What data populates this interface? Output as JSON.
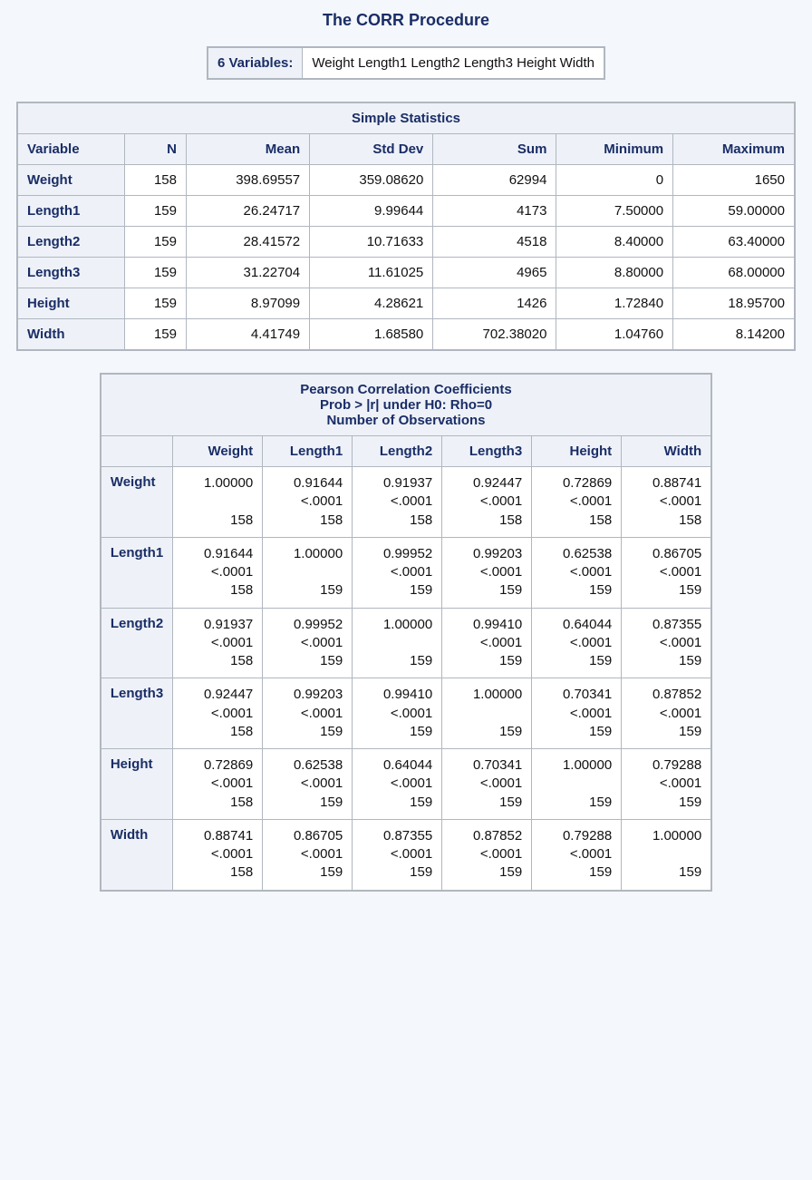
{
  "title": "The CORR Procedure",
  "colors": {
    "page_bg": "#f4f7fb",
    "cell_bg": "#ffffff",
    "header_bg": "#eef2f8",
    "border": "#b0b7bf",
    "title_text": "#1a2d66",
    "body_text": "#111111"
  },
  "fonts": {
    "family": "Arial, Helvetica, sans-serif",
    "title_size_pt": 14,
    "body_size_pt": 11
  },
  "vars_box": {
    "label": "6 Variables:",
    "value": "Weight Length1 Length2 Length3 Height Width"
  },
  "simple_stats": {
    "type": "table",
    "caption": "Simple Statistics",
    "columns": [
      "Variable",
      "N",
      "Mean",
      "Std Dev",
      "Sum",
      "Minimum",
      "Maximum"
    ],
    "rows": [
      [
        "Weight",
        "158",
        "398.69557",
        "359.08620",
        "62994",
        "0",
        "1650"
      ],
      [
        "Length1",
        "159",
        "26.24717",
        "9.99644",
        "4173",
        "7.50000",
        "59.00000"
      ],
      [
        "Length2",
        "159",
        "28.41572",
        "10.71633",
        "4518",
        "8.40000",
        "63.40000"
      ],
      [
        "Length3",
        "159",
        "31.22704",
        "11.61025",
        "4965",
        "8.80000",
        "68.00000"
      ],
      [
        "Height",
        "159",
        "8.97099",
        "4.28621",
        "1426",
        "1.72840",
        "18.95700"
      ],
      [
        "Width",
        "159",
        "4.41749",
        "1.68580",
        "702.38020",
        "1.04760",
        "8.14200"
      ]
    ]
  },
  "corr_matrix": {
    "type": "table",
    "caption_lines": [
      "Pearson Correlation Coefficients",
      "Prob > |r| under H0: Rho=0",
      "Number of Observations"
    ],
    "vars": [
      "Weight",
      "Length1",
      "Length2",
      "Length3",
      "Height",
      "Width"
    ],
    "cells": [
      [
        {
          "r": "1.00000",
          "p": "",
          "n": "158"
        },
        {
          "r": "0.91644",
          "p": "<.0001",
          "n": "158"
        },
        {
          "r": "0.91937",
          "p": "<.0001",
          "n": "158"
        },
        {
          "r": "0.92447",
          "p": "<.0001",
          "n": "158"
        },
        {
          "r": "0.72869",
          "p": "<.0001",
          "n": "158"
        },
        {
          "r": "0.88741",
          "p": "<.0001",
          "n": "158"
        }
      ],
      [
        {
          "r": "0.91644",
          "p": "<.0001",
          "n": "158"
        },
        {
          "r": "1.00000",
          "p": "",
          "n": "159"
        },
        {
          "r": "0.99952",
          "p": "<.0001",
          "n": "159"
        },
        {
          "r": "0.99203",
          "p": "<.0001",
          "n": "159"
        },
        {
          "r": "0.62538",
          "p": "<.0001",
          "n": "159"
        },
        {
          "r": "0.86705",
          "p": "<.0001",
          "n": "159"
        }
      ],
      [
        {
          "r": "0.91937",
          "p": "<.0001",
          "n": "158"
        },
        {
          "r": "0.99952",
          "p": "<.0001",
          "n": "159"
        },
        {
          "r": "1.00000",
          "p": "",
          "n": "159"
        },
        {
          "r": "0.99410",
          "p": "<.0001",
          "n": "159"
        },
        {
          "r": "0.64044",
          "p": "<.0001",
          "n": "159"
        },
        {
          "r": "0.87355",
          "p": "<.0001",
          "n": "159"
        }
      ],
      [
        {
          "r": "0.92447",
          "p": "<.0001",
          "n": "158"
        },
        {
          "r": "0.99203",
          "p": "<.0001",
          "n": "159"
        },
        {
          "r": "0.99410",
          "p": "<.0001",
          "n": "159"
        },
        {
          "r": "1.00000",
          "p": "",
          "n": "159"
        },
        {
          "r": "0.70341",
          "p": "<.0001",
          "n": "159"
        },
        {
          "r": "0.87852",
          "p": "<.0001",
          "n": "159"
        }
      ],
      [
        {
          "r": "0.72869",
          "p": "<.0001",
          "n": "158"
        },
        {
          "r": "0.62538",
          "p": "<.0001",
          "n": "159"
        },
        {
          "r": "0.64044",
          "p": "<.0001",
          "n": "159"
        },
        {
          "r": "0.70341",
          "p": "<.0001",
          "n": "159"
        },
        {
          "r": "1.00000",
          "p": "",
          "n": "159"
        },
        {
          "r": "0.79288",
          "p": "<.0001",
          "n": "159"
        }
      ],
      [
        {
          "r": "0.88741",
          "p": "<.0001",
          "n": "158"
        },
        {
          "r": "0.86705",
          "p": "<.0001",
          "n": "159"
        },
        {
          "r": "0.87355",
          "p": "<.0001",
          "n": "159"
        },
        {
          "r": "0.87852",
          "p": "<.0001",
          "n": "159"
        },
        {
          "r": "0.79288",
          "p": "<.0001",
          "n": "159"
        },
        {
          "r": "1.00000",
          "p": "",
          "n": "159"
        }
      ]
    ]
  }
}
